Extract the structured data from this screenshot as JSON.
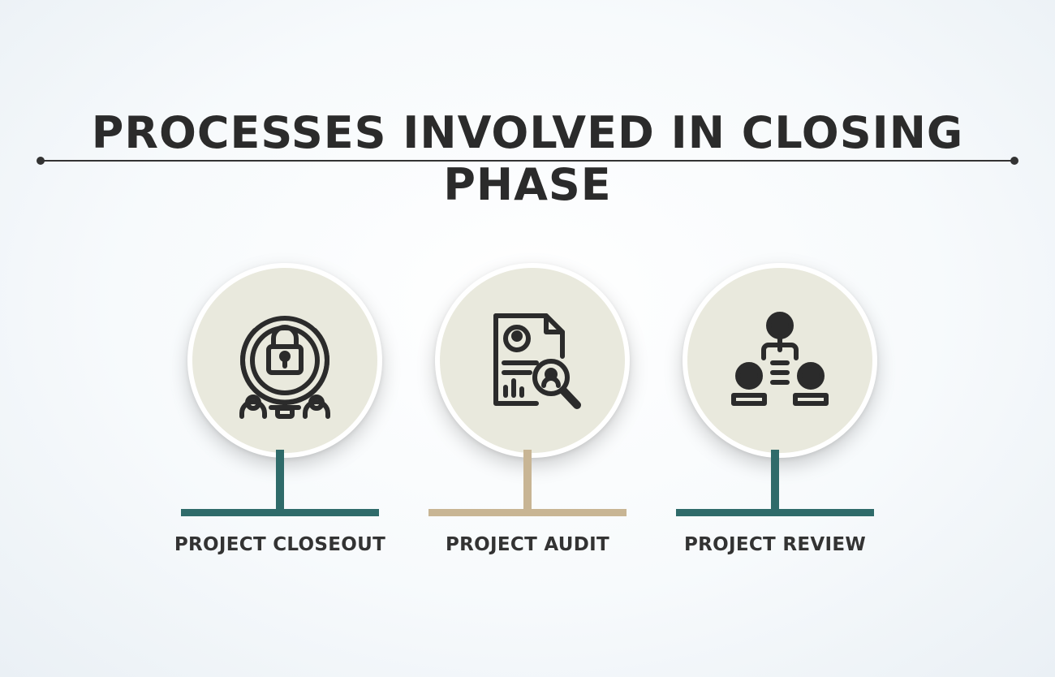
{
  "title": "PROCESSES INVOLVED IN CLOSING PHASE",
  "colors": {
    "teal": "#2f6b6a",
    "tan": "#c8b594",
    "disc": "#e9e9dd",
    "icon": "#2b2b2b"
  },
  "items": [
    {
      "label": "PROJECT CLOSEOUT",
      "icon": "lock-team-icon",
      "accent": "#2f6b6a"
    },
    {
      "label": "PROJECT AUDIT",
      "icon": "audit-document-magnifier-icon",
      "accent": "#c8b594"
    },
    {
      "label": "PROJECT REVIEW",
      "icon": "team-hierarchy-icon",
      "accent": "#2f6b6a"
    }
  ]
}
